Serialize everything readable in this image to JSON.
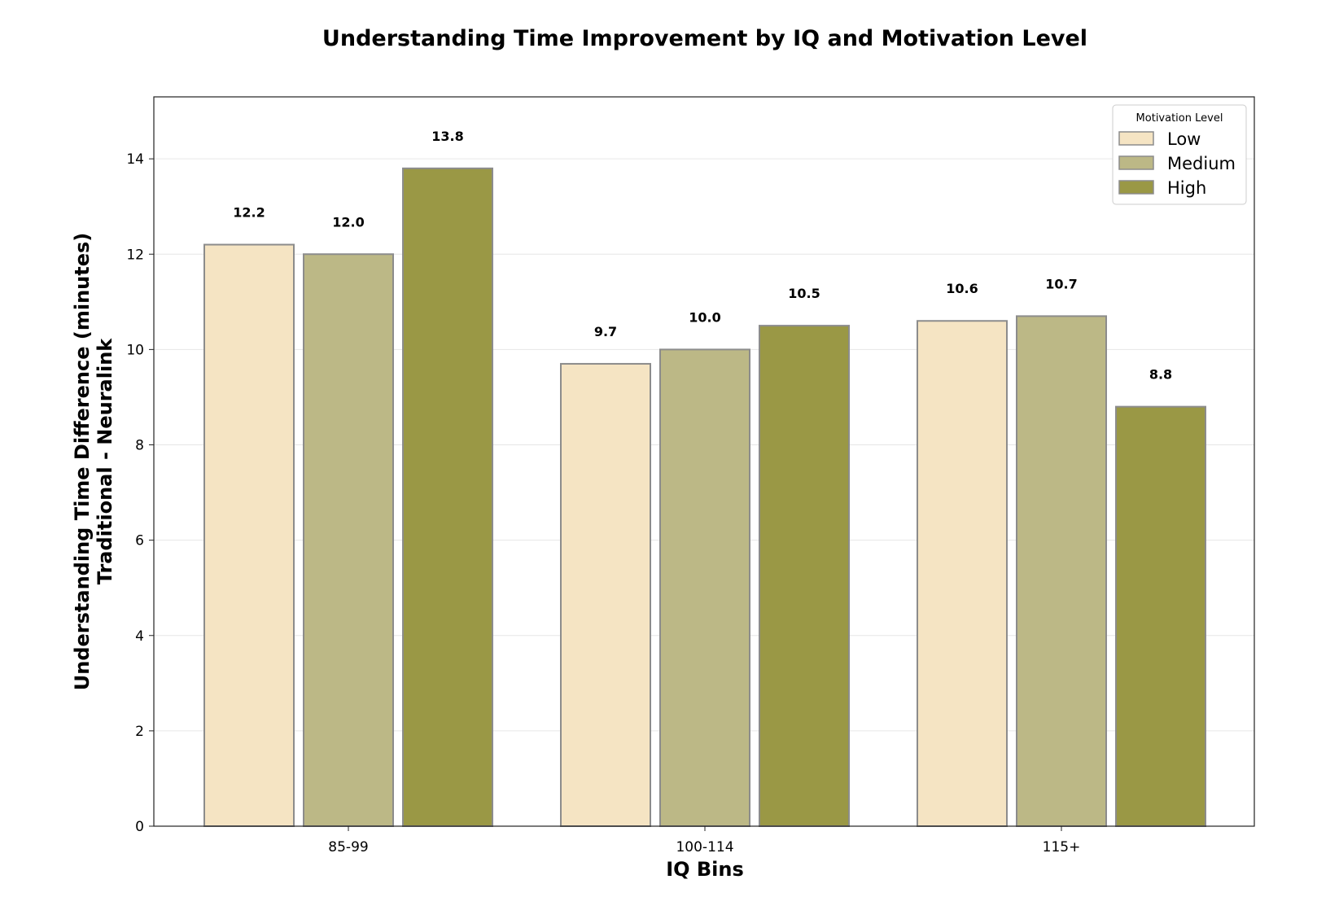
{
  "chart_data": {
    "type": "bar",
    "title": "Understanding Time Improvement by IQ and Motivation Level",
    "xlabel": "IQ Bins",
    "ylabel_line1": "Understanding Time Difference (minutes)",
    "ylabel_line2": "Traditional - Neuralink",
    "categories": [
      "85-99",
      "100-114",
      "115+"
    ],
    "series": [
      {
        "name": "Low",
        "values": [
          12.2,
          9.7,
          10.6
        ],
        "color": "#f5e4c3"
      },
      {
        "name": "Medium",
        "values": [
          12.0,
          10.0,
          10.7
        ],
        "color": "#bcb886"
      },
      {
        "name": "High",
        "values": [
          13.8,
          10.5,
          8.8
        ],
        "color": "#9a9845"
      }
    ],
    "ylim": [
      0,
      15.3
    ],
    "yticks": [
      0,
      2,
      4,
      6,
      8,
      10,
      12,
      14
    ],
    "grid": true,
    "legend": {
      "title": "Motivation Level",
      "placement": "top-right"
    },
    "bar_edge_color": "#8c8c8c"
  }
}
